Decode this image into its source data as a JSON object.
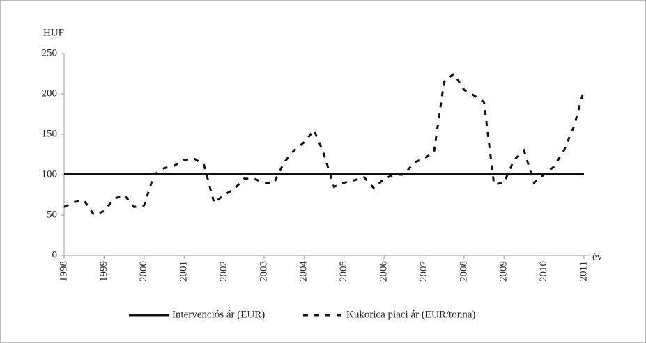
{
  "chart_data": {
    "type": "line",
    "y_label": "HUF",
    "x_label": "év",
    "categories": [
      "1998",
      null,
      null,
      null,
      "1999",
      null,
      null,
      null,
      "2000",
      null,
      null,
      null,
      "2001",
      null,
      null,
      null,
      "2002",
      null,
      null,
      null,
      "2003",
      null,
      null,
      null,
      "2004",
      null,
      null,
      null,
      "2005",
      null,
      null,
      null,
      "2006",
      null,
      null,
      null,
      "2007",
      null,
      null,
      null,
      "2008",
      null,
      null,
      null,
      "2009",
      null,
      null,
      null,
      "2010",
      null,
      null,
      null,
      "2011"
    ],
    "series": [
      {
        "name": "Intervenciós ár (EUR)",
        "color": "#111111",
        "style": "solid",
        "values": [
          101,
          101,
          101,
          101,
          101,
          101,
          101,
          101,
          101,
          101,
          101,
          101,
          101,
          101,
          101,
          101,
          101,
          101,
          101,
          101,
          101,
          101,
          101,
          101,
          101,
          101,
          101,
          101,
          101,
          101,
          101,
          101,
          101,
          101,
          101,
          101,
          101,
          101,
          101,
          101,
          101,
          101,
          101,
          101,
          101,
          101,
          101,
          101,
          101,
          101,
          101,
          101,
          101
        ]
      },
      {
        "name": "Kukorica piaci ár (EUR/tonna)",
        "color": "#111111",
        "style": "dashed",
        "values": [
          60,
          66,
          68,
          50,
          55,
          70,
          75,
          60,
          62,
          100,
          108,
          111,
          118,
          120,
          112,
          65,
          75,
          82,
          95,
          95,
          90,
          90,
          115,
          130,
          140,
          155,
          125,
          85,
          90,
          93,
          97,
          83,
          95,
          100,
          100,
          115,
          120,
          128,
          215,
          225,
          205,
          198,
          190,
          88,
          90,
          118,
          130,
          90,
          100,
          110,
          130,
          160,
          205
        ]
      }
    ],
    "ylim": [
      0,
      250
    ],
    "yticks": [
      0,
      50,
      100,
      150,
      200,
      250
    ],
    "grid": false,
    "legend": "bottom"
  }
}
